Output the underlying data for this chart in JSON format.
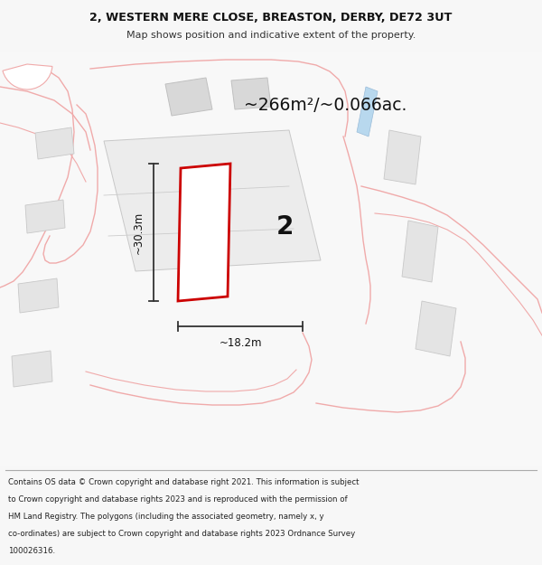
{
  "title_line1": "2, WESTERN MERE CLOSE, BREASTON, DERBY, DE72 3UT",
  "title_line2": "Map shows position and indicative extent of the property.",
  "area_text": "~266m²/~0.066ac.",
  "label_number": "2",
  "dim_width": "~18.2m",
  "dim_height": "~30.3m",
  "footer_lines": [
    "Contains OS data © Crown copyright and database right 2021. This information is subject",
    "to Crown copyright and database rights 2023 and is reproduced with the permission of",
    "HM Land Registry. The polygons (including the associated geometry, namely x, y",
    "co-ordinates) are subject to Crown copyright and database rights 2023 Ordnance Survey",
    "100026316."
  ],
  "bg_color": "#f7f7f7",
  "map_bg": "#ffffff",
  "red_color": "#cc0000",
  "pink_color": "#f0aaaa",
  "pink_color2": "#e8b8b8",
  "gray_building": "#d8d8d8",
  "gray_parcel": "#e4e4e4",
  "blue_water": "#b8d8ee",
  "white": "#ffffff"
}
